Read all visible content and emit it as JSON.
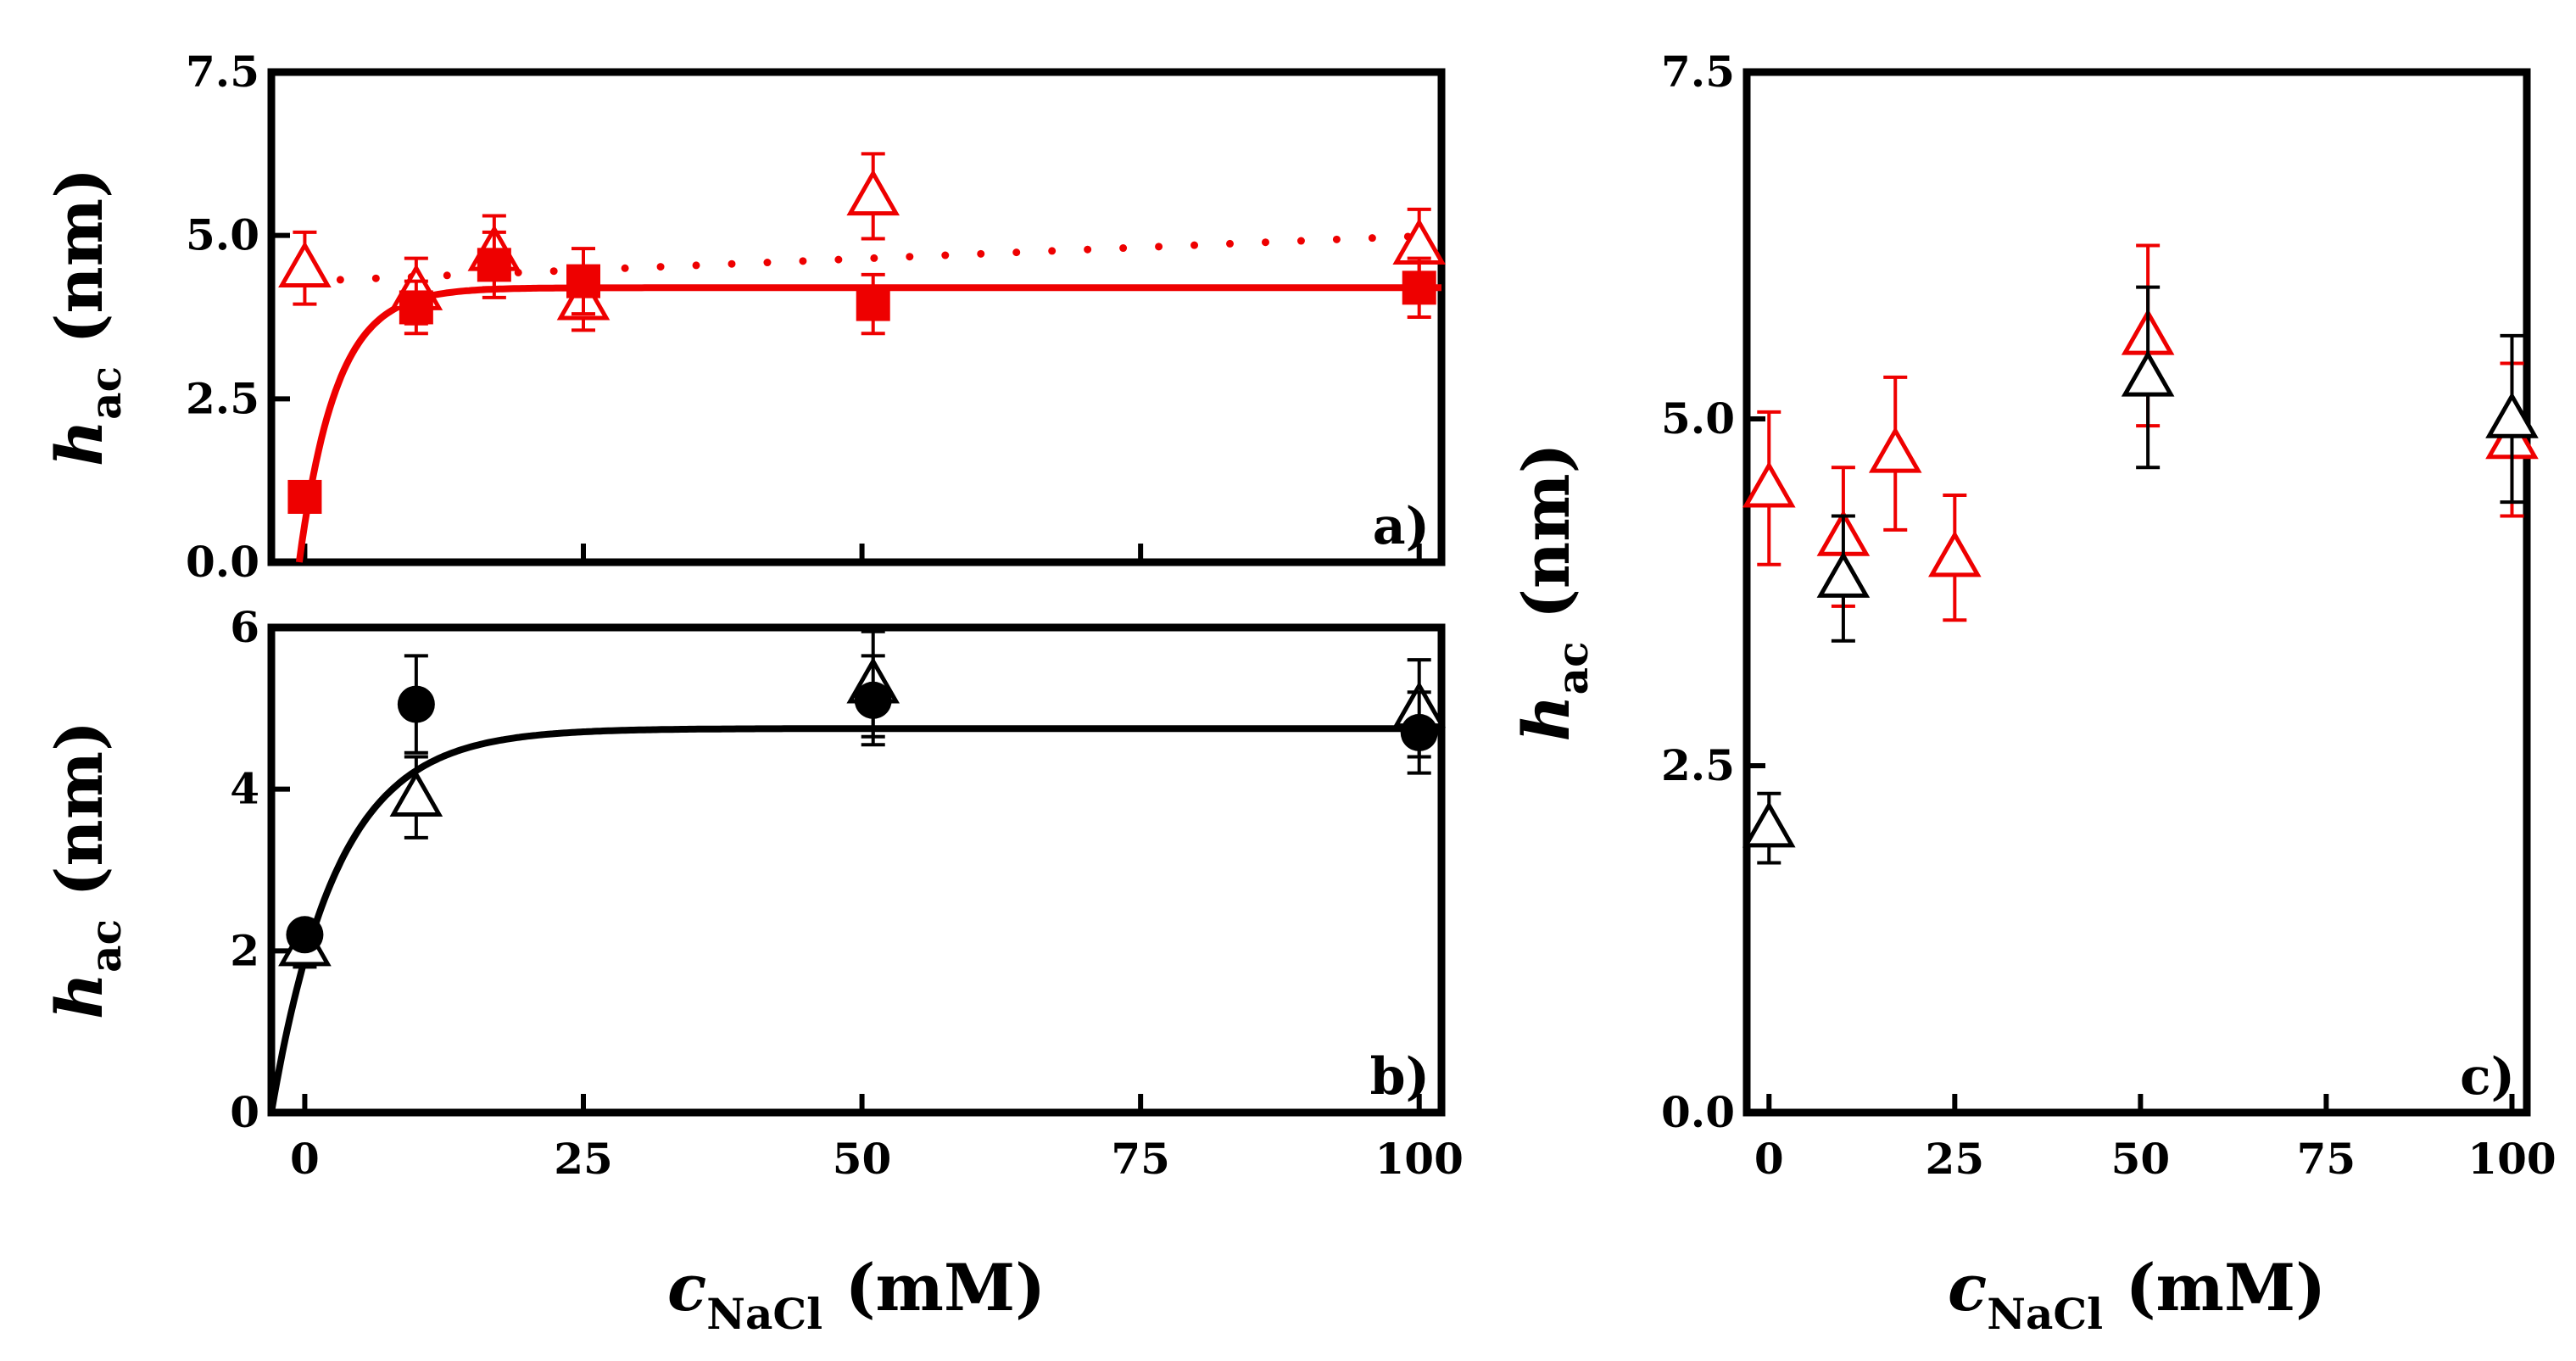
{
  "colors": {
    "red": "#ee0000",
    "black": "#000000"
  },
  "chart_data": [
    {
      "panel": "a)",
      "type": "scatter",
      "ylabel_main": "h",
      "ylabel_sub": "ac",
      "ylabel_unit": " (nm)",
      "xlim": [
        -3,
        102
      ],
      "ylim": [
        0,
        7.5
      ],
      "yticks": [
        {
          "v": 0,
          "label": "0.0"
        },
        {
          "v": 2.5,
          "label": "2.5"
        },
        {
          "v": 5,
          "label": "5.0"
        },
        {
          "v": 7.5,
          "label": "7.5"
        }
      ],
      "xticks": [
        0,
        25,
        50,
        75,
        100
      ],
      "show_xlabels": false,
      "series": [
        {
          "name": "open-triangle-red",
          "marker": "triangle-open",
          "color": "#ee0000",
          "x": [
            0,
            10,
            17,
            25,
            51,
            100
          ],
          "y": [
            4.5,
            4.15,
            4.75,
            4.0,
            5.6,
            4.85
          ],
          "err": [
            0.55,
            0.5,
            0.55,
            0.45,
            0.65,
            0.55
          ]
        },
        {
          "name": "filled-square-red",
          "marker": "square-filled",
          "color": "#ee0000",
          "x": [
            0,
            10,
            17,
            25,
            51,
            100
          ],
          "y": [
            1.0,
            3.9,
            4.55,
            4.3,
            3.95,
            4.2
          ],
          "err": [
            0,
            0.4,
            0.5,
            0.5,
            0.45,
            0.45
          ]
        }
      ],
      "fits": [
        {
          "name": "exp-fit-red",
          "style": "solid",
          "color": "#ee0000",
          "a": 4.2,
          "k": 0.3,
          "x0": -0.5
        },
        {
          "name": "linear-fit-red",
          "style": "dotted",
          "color": "#ee0000",
          "y0": 4.3,
          "slope": 0.0069,
          "x0": 0,
          "x1": 100
        }
      ]
    },
    {
      "panel": "b)",
      "type": "scatter",
      "ylabel_main": "h",
      "ylabel_sub": "ac",
      "ylabel_unit": " (nm)",
      "xlabel_main": "c",
      "xlabel_sub": "NaCl",
      "xlabel_unit": " (mM)",
      "xlim": [
        -3,
        102
      ],
      "ylim": [
        0,
        6
      ],
      "yticks": [
        {
          "v": 0,
          "label": "0"
        },
        {
          "v": 2,
          "label": "2"
        },
        {
          "v": 4,
          "label": "4"
        },
        {
          "v": 6,
          "label": "6"
        }
      ],
      "xticks": [
        0,
        25,
        50,
        75,
        100
      ],
      "show_xlabels": true,
      "series": [
        {
          "name": "open-triangle-black",
          "marker": "triangle-open",
          "color": "#000000",
          "x": [
            0,
            10,
            51,
            100
          ],
          "y": [
            2.05,
            3.9,
            5.3,
            5.0
          ],
          "err": [
            0.25,
            0.5,
            0.65,
            0.6
          ]
        },
        {
          "name": "filled-circle-black",
          "marker": "circle-filled",
          "color": "#000000",
          "x": [
            0,
            10,
            51,
            100
          ],
          "y": [
            2.2,
            5.05,
            5.1,
            4.7
          ],
          "err": [
            0,
            0.6,
            0.55,
            0.5
          ]
        }
      ],
      "fits": [
        {
          "name": "exp-fit-black",
          "style": "solid",
          "color": "#000000",
          "a": 4.75,
          "k": 0.17,
          "x0": -3
        }
      ]
    },
    {
      "panel": "c)",
      "type": "scatter",
      "ylabel_main": "h",
      "ylabel_sub": "ac",
      "ylabel_unit": " (nm)",
      "xlabel_main": "c",
      "xlabel_sub": "NaCl",
      "xlabel_unit": " (mM)",
      "xlim": [
        -3,
        102
      ],
      "ylim": [
        0,
        7.5
      ],
      "yticks": [
        {
          "v": 0,
          "label": "0.0"
        },
        {
          "v": 2.5,
          "label": "2.5"
        },
        {
          "v": 5,
          "label": "5.0"
        },
        {
          "v": 7.5,
          "label": "7.5"
        }
      ],
      "xticks": [
        0,
        25,
        50,
        75,
        100
      ],
      "show_xlabels": true,
      "series": [
        {
          "name": "open-triangle-red",
          "marker": "triangle-open",
          "color": "#ee0000",
          "x": [
            0,
            10,
            17,
            25,
            51,
            100
          ],
          "y": [
            4.5,
            4.15,
            4.75,
            4.0,
            5.6,
            4.85
          ],
          "err": [
            0.55,
            0.5,
            0.55,
            0.45,
            0.65,
            0.55
          ]
        },
        {
          "name": "open-triangle-black",
          "marker": "triangle-open",
          "color": "#000000",
          "x": [
            0,
            10,
            51,
            100
          ],
          "y": [
            2.05,
            3.85,
            5.3,
            5.0
          ],
          "err": [
            0.25,
            0.45,
            0.65,
            0.6
          ]
        }
      ],
      "fits": []
    }
  ]
}
